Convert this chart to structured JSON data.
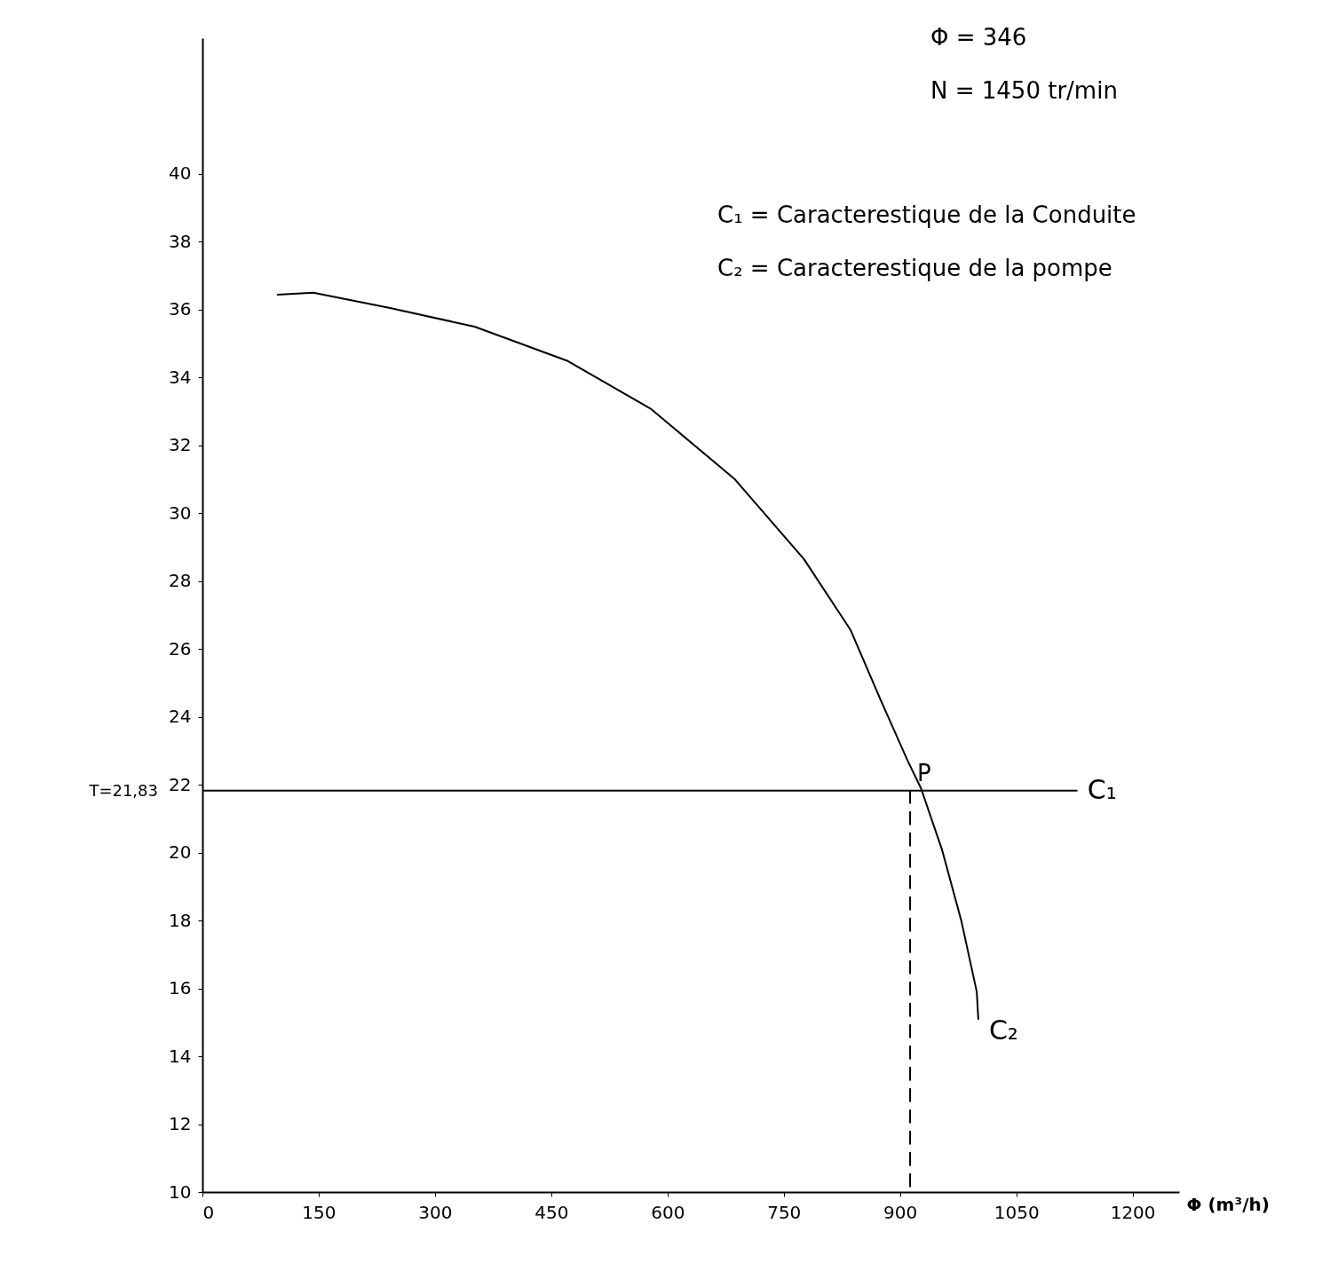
{
  "chart_data": {
    "type": "line",
    "xlabel": "Φ (m³/h)",
    "xlim": [
      0,
      1260
    ],
    "xticks": [
      0,
      150,
      300,
      450,
      600,
      750,
      900,
      1050,
      1200
    ],
    "ylim": [
      10,
      44
    ],
    "yticks": [
      10,
      12,
      14,
      16,
      18,
      20,
      22,
      24,
      26,
      28,
      30,
      32,
      34,
      36,
      38,
      40
    ],
    "grid": false,
    "series": [
      {
        "name": "C₁",
        "color": "#000000",
        "x": [
          0,
          1128
        ],
        "values": [
          21.83,
          21.83
        ]
      },
      {
        "name": "C₂",
        "color": "#000000",
        "x": [
          97,
          143,
          242,
          351,
          470,
          579,
          687,
          776,
          836,
          875,
          910,
          927,
          954,
          979,
          999,
          1001
        ],
        "values": [
          36.44,
          36.5,
          36.05,
          35.5,
          34.5,
          33.07,
          31.0,
          28.65,
          26.57,
          24.5,
          22.7,
          21.9,
          20.1,
          18.0,
          15.9,
          15.1
        ]
      },
      {
        "color": "#000000",
        "line_style": "dashed",
        "x": [
          913,
          913
        ],
        "values": [
          21.83,
          10
        ]
      }
    ],
    "annotations": [
      "Φ = 346",
      "N = 1450 tr/min",
      "C₁ = Caracterestique de la Conduite",
      "C₂ = Caracterestique de la pompe",
      {
        "text": "P",
        "x": 913,
        "y": 21.83
      },
      {
        "text": "T=21,83",
        "x": 0,
        "y": 21.83
      }
    ]
  }
}
